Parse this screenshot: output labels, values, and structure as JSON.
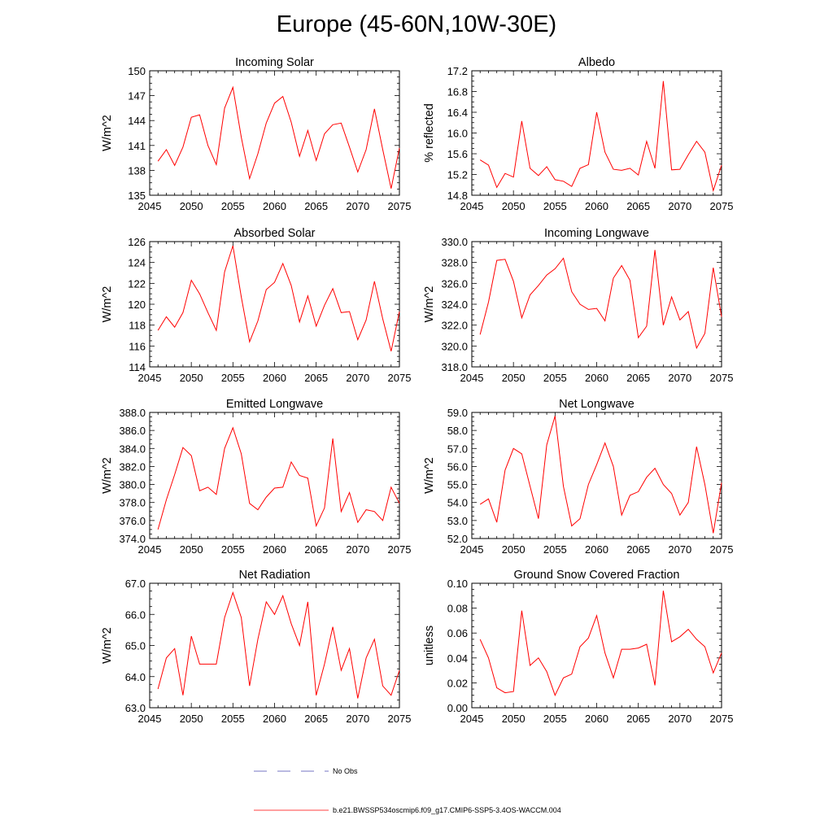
{
  "figure": {
    "title": "Europe (45-60N,10W-30E)",
    "line_color": "#ff0000",
    "obs_color": "#4a4ab0"
  },
  "legend": {
    "obs_label": "No Obs",
    "model_label": "b.e21.BWSSP534oscmip6.f09_g17.CMIP6-SSP5-3.4OS-WACCM.004"
  },
  "chart_data": [
    {
      "type": "line",
      "title": "Incoming Solar",
      "ylabel": "W/m^2",
      "xlim": [
        2045,
        2075
      ],
      "ylim": [
        135,
        150
      ],
      "yticks": [
        "135",
        "138",
        "141",
        "144",
        "147",
        "150"
      ],
      "xticks": [
        "2045",
        "2050",
        "2055",
        "2060",
        "2065",
        "2070",
        "2075"
      ],
      "x": [
        2046,
        2047,
        2048,
        2049,
        2050,
        2051,
        2052,
        2053,
        2054,
        2055,
        2056,
        2057,
        2058,
        2059,
        2060,
        2061,
        2062,
        2063,
        2064,
        2065,
        2066,
        2067,
        2068,
        2069,
        2070,
        2071,
        2072,
        2073,
        2074,
        2075
      ],
      "y": [
        139.1,
        140.5,
        138.6,
        140.8,
        144.4,
        144.7,
        141.0,
        138.7,
        145.5,
        148.0,
        142.0,
        137.0,
        140.0,
        143.7,
        146.1,
        146.9,
        143.8,
        139.7,
        142.8,
        139.2,
        142.4,
        143.5,
        143.7,
        140.8,
        137.8,
        140.5,
        145.4,
        140.5,
        135.8,
        140.7
      ]
    },
    {
      "type": "line",
      "title": "Albedo",
      "ylabel": "% reflected",
      "xlim": [
        2045,
        2075
      ],
      "ylim": [
        14.8,
        17.2
      ],
      "yticks": [
        "14.8",
        "15.2",
        "15.6",
        "16.0",
        "16.4",
        "16.8",
        "17.2"
      ],
      "xticks": [
        "2045",
        "2050",
        "2055",
        "2060",
        "2065",
        "2070",
        "2075"
      ],
      "x": [
        2046,
        2047,
        2048,
        2049,
        2050,
        2051,
        2052,
        2053,
        2054,
        2055,
        2056,
        2057,
        2058,
        2059,
        2060,
        2061,
        2062,
        2063,
        2064,
        2065,
        2066,
        2067,
        2068,
        2069,
        2070,
        2071,
        2072,
        2073,
        2074,
        2075
      ],
      "y": [
        15.48,
        15.38,
        14.95,
        15.22,
        15.15,
        16.23,
        15.32,
        15.18,
        15.35,
        15.1,
        15.07,
        14.97,
        15.32,
        15.39,
        16.4,
        15.63,
        15.3,
        15.28,
        15.32,
        15.19,
        15.84,
        15.32,
        17.0,
        15.29,
        15.3,
        15.58,
        15.84,
        15.63,
        14.89,
        15.38
      ]
    },
    {
      "type": "line",
      "title": "Absorbed Solar",
      "ylabel": "W/m^2",
      "xlim": [
        2045,
        2075
      ],
      "ylim": [
        114,
        126
      ],
      "yticks": [
        "114",
        "116",
        "118",
        "120",
        "122",
        "124",
        "126"
      ],
      "xticks": [
        "2045",
        "2050",
        "2055",
        "2060",
        "2065",
        "2070",
        "2075"
      ],
      "x": [
        2046,
        2047,
        2048,
        2049,
        2050,
        2051,
        2052,
        2053,
        2054,
        2055,
        2056,
        2057,
        2058,
        2059,
        2060,
        2061,
        2062,
        2063,
        2064,
        2065,
        2066,
        2067,
        2068,
        2069,
        2070,
        2071,
        2072,
        2073,
        2074,
        2075
      ],
      "y": [
        117.5,
        118.8,
        117.8,
        119.2,
        122.3,
        121.0,
        119.2,
        117.5,
        123.1,
        125.6,
        120.7,
        116.4,
        118.4,
        121.4,
        122.1,
        123.9,
        121.8,
        118.3,
        120.8,
        117.9,
        119.9,
        121.5,
        119.2,
        119.3,
        116.6,
        118.5,
        122.2,
        118.6,
        115.5,
        119.3
      ]
    },
    {
      "type": "line",
      "title": "Incoming Longwave",
      "ylabel": "W/m^2",
      "xlim": [
        2045,
        2075
      ],
      "ylim": [
        318.0,
        330.0
      ],
      "yticks": [
        "318.0",
        "320.0",
        "322.0",
        "324.0",
        "326.0",
        "328.0",
        "330.0"
      ],
      "xticks": [
        "2045",
        "2050",
        "2055",
        "2060",
        "2065",
        "2070",
        "2075"
      ],
      "x": [
        2046,
        2047,
        2048,
        2049,
        2050,
        2051,
        2052,
        2053,
        2054,
        2055,
        2056,
        2057,
        2058,
        2059,
        2060,
        2061,
        2062,
        2063,
        2064,
        2065,
        2066,
        2067,
        2068,
        2069,
        2070,
        2071,
        2072,
        2073,
        2074,
        2075
      ],
      "y": [
        321.1,
        324.2,
        328.2,
        328.3,
        326.2,
        322.7,
        324.9,
        325.8,
        326.8,
        327.4,
        328.4,
        325.2,
        324.0,
        323.5,
        323.6,
        322.4,
        326.5,
        327.7,
        326.3,
        320.8,
        321.9,
        329.2,
        322.0,
        324.7,
        322.5,
        323.3,
        319.8,
        321.2,
        327.5,
        322.8
      ]
    },
    {
      "type": "line",
      "title": "Emitted Longwave",
      "ylabel": "W/m^2",
      "xlim": [
        2045,
        2075
      ],
      "ylim": [
        374.0,
        388.0
      ],
      "yticks": [
        "374.0",
        "376.0",
        "378.0",
        "380.0",
        "382.0",
        "384.0",
        "386.0",
        "388.0"
      ],
      "xticks": [
        "2045",
        "2050",
        "2055",
        "2060",
        "2065",
        "2070",
        "2075"
      ],
      "x": [
        2046,
        2047,
        2048,
        2049,
        2050,
        2051,
        2052,
        2053,
        2054,
        2055,
        2056,
        2057,
        2058,
        2059,
        2060,
        2061,
        2062,
        2063,
        2064,
        2065,
        2066,
        2067,
        2068,
        2069,
        2070,
        2071,
        2072,
        2073,
        2074,
        2075
      ],
      "y": [
        375.0,
        378.3,
        381.1,
        384.1,
        383.2,
        379.3,
        379.7,
        378.9,
        384.0,
        386.3,
        383.4,
        377.9,
        377.2,
        378.6,
        379.6,
        379.7,
        382.5,
        381.0,
        380.7,
        375.4,
        377.4,
        385.1,
        377.0,
        379.1,
        375.8,
        377.2,
        377.0,
        376.0,
        379.7,
        377.9
      ]
    },
    {
      "type": "line",
      "title": "Net Longwave",
      "ylabel": "W/m^2",
      "xlim": [
        2045,
        2075
      ],
      "ylim": [
        52.0,
        59.0
      ],
      "yticks": [
        "52.0",
        "53.0",
        "54.0",
        "55.0",
        "56.0",
        "57.0",
        "58.0",
        "59.0"
      ],
      "xticks": [
        "2045",
        "2050",
        "2055",
        "2060",
        "2065",
        "2070",
        "2075"
      ],
      "x": [
        2046,
        2047,
        2048,
        2049,
        2050,
        2051,
        2052,
        2053,
        2054,
        2055,
        2056,
        2057,
        2058,
        2059,
        2060,
        2061,
        2062,
        2063,
        2064,
        2065,
        2066,
        2067,
        2068,
        2069,
        2070,
        2071,
        2072,
        2073,
        2074,
        2075
      ],
      "y": [
        53.9,
        54.2,
        52.9,
        55.8,
        57.0,
        56.7,
        54.9,
        53.1,
        57.2,
        58.8,
        54.9,
        52.7,
        53.1,
        55.0,
        56.1,
        57.3,
        56.0,
        53.3,
        54.4,
        54.6,
        55.4,
        55.9,
        55.0,
        54.5,
        53.3,
        54.0,
        57.1,
        55.0,
        52.3,
        55.1
      ]
    },
    {
      "type": "line",
      "title": "Net Radiation",
      "ylabel": "W/m^2",
      "xlim": [
        2045,
        2075
      ],
      "ylim": [
        63.0,
        67.0
      ],
      "yticks": [
        "63.0",
        "64.0",
        "65.0",
        "66.0",
        "67.0"
      ],
      "xticks": [
        "2045",
        "2050",
        "2055",
        "2060",
        "2065",
        "2070",
        "2075"
      ],
      "x": [
        2046,
        2047,
        2048,
        2049,
        2050,
        2051,
        2052,
        2053,
        2054,
        2055,
        2056,
        2057,
        2058,
        2059,
        2060,
        2061,
        2062,
        2063,
        2064,
        2065,
        2066,
        2067,
        2068,
        2069,
        2070,
        2071,
        2072,
        2073,
        2074,
        2075
      ],
      "y": [
        63.6,
        64.6,
        64.9,
        63.4,
        65.3,
        64.4,
        64.4,
        64.4,
        65.9,
        66.7,
        65.9,
        63.7,
        65.2,
        66.4,
        66.0,
        66.6,
        65.7,
        65.0,
        66.4,
        63.4,
        64.4,
        65.6,
        64.2,
        64.9,
        63.3,
        64.6,
        65.2,
        63.7,
        63.4,
        64.2
      ]
    },
    {
      "type": "line",
      "title": "Ground Snow Covered Fraction",
      "ylabel": "unitless",
      "xlim": [
        2045,
        2075
      ],
      "ylim": [
        0.0,
        0.1
      ],
      "yticks": [
        "0.00",
        "0.02",
        "0.04",
        "0.06",
        "0.08",
        "0.10"
      ],
      "xticks": [
        "2045",
        "2050",
        "2055",
        "2060",
        "2065",
        "2070",
        "2075"
      ],
      "x": [
        2046,
        2047,
        2048,
        2049,
        2050,
        2051,
        2052,
        2053,
        2054,
        2055,
        2056,
        2057,
        2058,
        2059,
        2060,
        2061,
        2062,
        2063,
        2064,
        2065,
        2066,
        2067,
        2068,
        2069,
        2070,
        2071,
        2072,
        2073,
        2074,
        2075
      ],
      "y": [
        0.055,
        0.04,
        0.016,
        0.012,
        0.013,
        0.078,
        0.034,
        0.04,
        0.029,
        0.01,
        0.024,
        0.027,
        0.049,
        0.056,
        0.074,
        0.044,
        0.024,
        0.047,
        0.047,
        0.048,
        0.051,
        0.018,
        0.094,
        0.053,
        0.057,
        0.063,
        0.055,
        0.049,
        0.028,
        0.044
      ]
    }
  ]
}
